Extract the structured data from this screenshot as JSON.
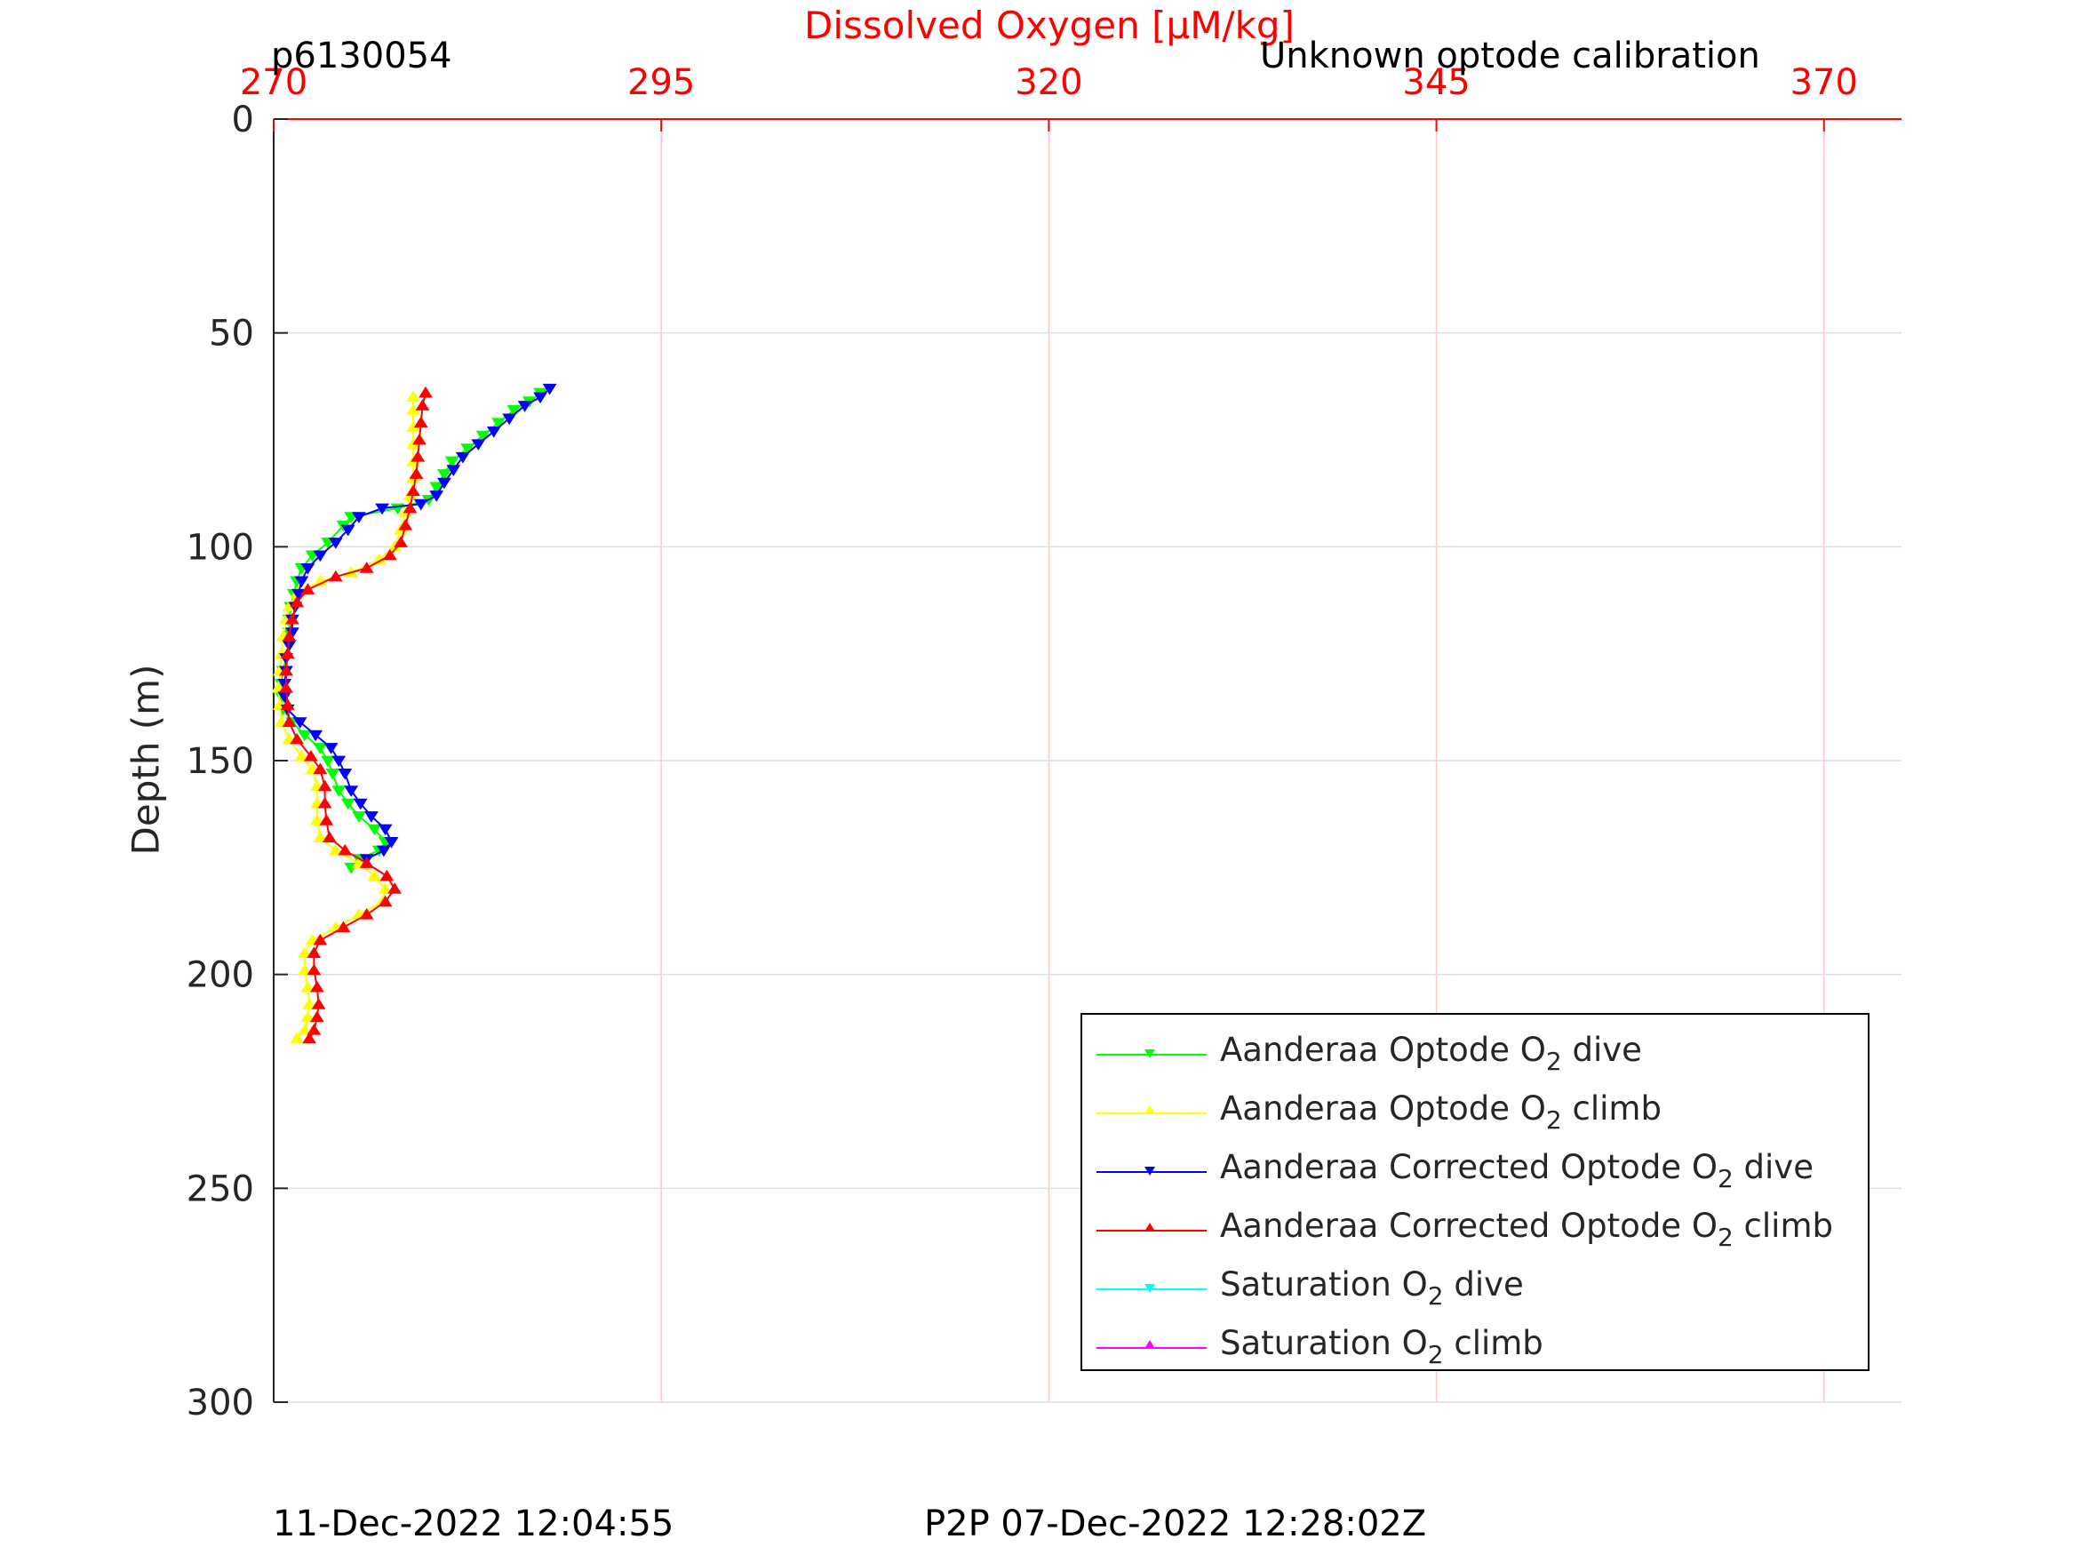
{
  "header": {
    "left_label": "p6130054",
    "right_label": "Unknown optode calibration"
  },
  "footer": {
    "left": "11-Dec-2022 12:04:55",
    "right": "P2P 07-Dec-2022 12:28:02Z"
  },
  "chart_data": {
    "type": "line",
    "title": "Dissolved Oxygen [μM/kg]",
    "xlabel": "Dissolved Oxygen [μM/kg]",
    "ylabel": "Depth (m)",
    "x_axis_position": "top",
    "x_axis_color": "#ff0000",
    "y_reversed": true,
    "xlim": [
      270,
      375
    ],
    "ylim": [
      0,
      300
    ],
    "xticks": [
      270,
      295,
      320,
      345,
      370
    ],
    "yticks": [
      0,
      50,
      100,
      150,
      200,
      250,
      300
    ],
    "grid": true,
    "legend_position": "bottom-right",
    "series": [
      {
        "name": "Aanderaa Optode O2 dive",
        "legend_main": "Aanderaa Optode O",
        "legend_sub": "2",
        "legend_tail": " dive",
        "color": "#00ff00",
        "marker": "triangle-down",
        "points": [
          [
            287.2,
            64
          ],
          [
            286.5,
            66
          ],
          [
            285.5,
            68
          ],
          [
            284.5,
            71
          ],
          [
            283.5,
            74
          ],
          [
            282.5,
            77
          ],
          [
            281.5,
            80
          ],
          [
            281,
            83
          ],
          [
            280.5,
            86
          ],
          [
            280,
            89
          ],
          [
            278,
            91
          ],
          [
            275,
            93
          ],
          [
            274.5,
            95
          ],
          [
            273.5,
            99
          ],
          [
            272.5,
            102
          ],
          [
            271.8,
            105
          ],
          [
            271.5,
            108
          ],
          [
            271.3,
            111
          ],
          [
            271.1,
            114
          ],
          [
            271,
            117
          ],
          [
            271,
            120
          ],
          [
            271,
            123
          ],
          [
            270.8,
            126
          ],
          [
            270.6,
            129
          ],
          [
            270.5,
            132
          ],
          [
            270.5,
            135
          ],
          [
            270.6,
            138
          ],
          [
            271.2,
            141
          ],
          [
            272,
            144
          ],
          [
            273,
            147
          ],
          [
            273.5,
            150
          ],
          [
            273.8,
            153
          ],
          [
            274.2,
            157
          ],
          [
            274.8,
            160
          ],
          [
            275.5,
            163
          ],
          [
            276.5,
            166
          ],
          [
            277.2,
            169
          ],
          [
            276.8,
            171
          ],
          [
            275.5,
            173
          ],
          [
            275,
            175
          ]
        ]
      },
      {
        "name": "Aanderaa Optode O2 climb",
        "legend_main": "Aanderaa Optode O",
        "legend_sub": "2",
        "legend_tail": " climb",
        "color": "#ffff00",
        "marker": "triangle-up",
        "points": [
          [
            279,
            65
          ],
          [
            279,
            68
          ],
          [
            279,
            72
          ],
          [
            279,
            76
          ],
          [
            279,
            80
          ],
          [
            279,
            84
          ],
          [
            278.8,
            88
          ],
          [
            278.5,
            92
          ],
          [
            278.2,
            96
          ],
          [
            277.8,
            100
          ],
          [
            276.8,
            103
          ],
          [
            275,
            106
          ],
          [
            273,
            108
          ],
          [
            271.5,
            111
          ],
          [
            271,
            114
          ],
          [
            270.8,
            117
          ],
          [
            270.6,
            121
          ],
          [
            270.5,
            125
          ],
          [
            270.4,
            129
          ],
          [
            270.3,
            133
          ],
          [
            270.4,
            137
          ],
          [
            270.5,
            141
          ],
          [
            271,
            145
          ],
          [
            271.8,
            149
          ],
          [
            272.5,
            152
          ],
          [
            272.8,
            156
          ],
          [
            272.8,
            160
          ],
          [
            272.8,
            164
          ],
          [
            273,
            168
          ],
          [
            274,
            171
          ],
          [
            275.5,
            174
          ],
          [
            276.5,
            177
          ],
          [
            277.2,
            180
          ],
          [
            277,
            183
          ],
          [
            275.5,
            186
          ],
          [
            274,
            189
          ],
          [
            272.5,
            192
          ],
          [
            272,
            195
          ],
          [
            272,
            199
          ],
          [
            272.2,
            203
          ],
          [
            272.3,
            207
          ],
          [
            272.2,
            210
          ],
          [
            272,
            213
          ],
          [
            271.5,
            215
          ]
        ]
      },
      {
        "name": "Aanderaa Corrected Optode O2 dive",
        "legend_main": "Aanderaa Corrected Optode O",
        "legend_sub": "2",
        "legend_tail": " dive",
        "color": "#0000ff",
        "marker": "triangle-down",
        "points": [
          [
            287.8,
            63
          ],
          [
            287.2,
            65
          ],
          [
            286.2,
            67
          ],
          [
            285.2,
            70
          ],
          [
            284.2,
            73
          ],
          [
            283.2,
            76
          ],
          [
            282.2,
            79
          ],
          [
            281.6,
            82
          ],
          [
            281,
            85
          ],
          [
            280.5,
            88
          ],
          [
            279.5,
            90
          ],
          [
            277,
            91
          ],
          [
            275.5,
            93
          ],
          [
            274.8,
            96
          ],
          [
            274,
            99
          ],
          [
            273,
            102
          ],
          [
            272.2,
            105
          ],
          [
            271.8,
            108
          ],
          [
            271.6,
            111
          ],
          [
            271.4,
            114
          ],
          [
            271.2,
            117
          ],
          [
            271.2,
            120
          ],
          [
            271,
            123
          ],
          [
            270.8,
            126
          ],
          [
            270.8,
            129
          ],
          [
            270.7,
            132
          ],
          [
            270.7,
            135
          ],
          [
            270.9,
            138
          ],
          [
            271.7,
            141
          ],
          [
            272.7,
            144
          ],
          [
            273.7,
            147
          ],
          [
            274.2,
            150
          ],
          [
            274.6,
            153
          ],
          [
            275,
            157
          ],
          [
            275.6,
            160
          ],
          [
            276.3,
            163
          ],
          [
            277.2,
            166
          ],
          [
            277.6,
            169
          ],
          [
            277.1,
            171
          ],
          [
            276,
            173
          ]
        ]
      },
      {
        "name": "Aanderaa Corrected Optode O2 climb",
        "legend_main": "Aanderaa Corrected Optode O",
        "legend_sub": "2",
        "legend_tail": " climb",
        "color": "#ff0000",
        "marker": "triangle-up",
        "points": [
          [
            279.8,
            64
          ],
          [
            279.6,
            67
          ],
          [
            279.5,
            71
          ],
          [
            279.4,
            75
          ],
          [
            279.3,
            79
          ],
          [
            279.2,
            83
          ],
          [
            279,
            87
          ],
          [
            278.8,
            91
          ],
          [
            278.5,
            95
          ],
          [
            278.2,
            99
          ],
          [
            277.5,
            102
          ],
          [
            276,
            105
          ],
          [
            274,
            107
          ],
          [
            272.2,
            110
          ],
          [
            271.5,
            113
          ],
          [
            271.2,
            117
          ],
          [
            271,
            121
          ],
          [
            270.9,
            125
          ],
          [
            270.8,
            129
          ],
          [
            270.8,
            133
          ],
          [
            270.9,
            137
          ],
          [
            271,
            141
          ],
          [
            271.5,
            145
          ],
          [
            272.4,
            149
          ],
          [
            273,
            152
          ],
          [
            273.3,
            156
          ],
          [
            273.3,
            160
          ],
          [
            273.4,
            164
          ],
          [
            273.6,
            168
          ],
          [
            274.6,
            171
          ],
          [
            276,
            174
          ],
          [
            277.3,
            177
          ],
          [
            277.8,
            180
          ],
          [
            277.2,
            183
          ],
          [
            276,
            186
          ],
          [
            274.5,
            189
          ],
          [
            273,
            192
          ],
          [
            272.6,
            195
          ],
          [
            272.6,
            199
          ],
          [
            272.8,
            203
          ],
          [
            272.9,
            207
          ],
          [
            272.8,
            210
          ],
          [
            272.6,
            213
          ],
          [
            272.3,
            215
          ]
        ]
      },
      {
        "name": "Saturation O2 dive",
        "legend_main": "Saturation O",
        "legend_sub": "2",
        "legend_tail": " dive",
        "color": "#00ffff",
        "marker": "triangle-down",
        "points": []
      },
      {
        "name": "Saturation O2 climb",
        "legend_main": "Saturation O",
        "legend_sub": "2",
        "legend_tail": " climb",
        "color": "#ff00ff",
        "marker": "triangle-up",
        "points": []
      }
    ]
  }
}
